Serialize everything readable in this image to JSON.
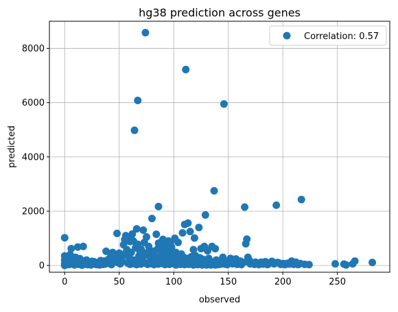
{
  "chart_data": {
    "type": "scatter",
    "title": "hg38 prediction across genes",
    "xlabel": "observed",
    "ylabel": "predicted",
    "xlim": [
      -14,
      298
    ],
    "ylim": [
      -250,
      9000
    ],
    "xticks": [
      0,
      50,
      100,
      150,
      200,
      250
    ],
    "yticks": [
      0,
      2000,
      4000,
      6000,
      8000
    ],
    "grid": true,
    "legend": {
      "placement": "top-right",
      "entries": [
        "Correlation: 0.57"
      ]
    },
    "series": [
      {
        "name": "Correlation: 0.57",
        "color": "#1f77b4",
        "points": [
          [
            74,
            8580
          ],
          [
            111,
            7220
          ],
          [
            67,
            6080
          ],
          [
            146,
            5950
          ],
          [
            64,
            4980
          ],
          [
            137,
            2750
          ],
          [
            86,
            2170
          ],
          [
            194,
            2220
          ],
          [
            217,
            2430
          ],
          [
            165,
            2150
          ],
          [
            80,
            1730
          ],
          [
            129,
            1860
          ],
          [
            110,
            1510
          ],
          [
            113,
            1560
          ],
          [
            123,
            1400
          ],
          [
            115,
            1250
          ],
          [
            108,
            1200
          ],
          [
            72,
            1300
          ],
          [
            66,
            1350
          ],
          [
            48,
            1180
          ],
          [
            56,
            1100
          ],
          [
            84,
            1150
          ],
          [
            101,
            1000
          ],
          [
            119,
            1010
          ],
          [
            0,
            1020
          ],
          [
            62,
            1160
          ],
          [
            75,
            1050
          ],
          [
            95,
            900
          ],
          [
            104,
            850
          ],
          [
            135,
            700
          ],
          [
            138,
            620
          ],
          [
            167,
            970
          ],
          [
            166,
            800
          ],
          [
            60,
            880
          ],
          [
            54,
            760
          ],
          [
            88,
            740
          ],
          [
            98,
            680
          ],
          [
            6,
            620
          ],
          [
            12,
            680
          ],
          [
            17,
            700
          ],
          [
            38,
            520
          ],
          [
            44,
            480
          ],
          [
            70,
            600
          ],
          [
            78,
            560
          ],
          [
            92,
            620
          ],
          [
            3,
            250
          ],
          [
            5,
            400
          ],
          [
            10,
            300
          ],
          [
            15,
            120
          ],
          [
            20,
            200
          ],
          [
            22,
            80
          ],
          [
            25,
            150
          ],
          [
            28,
            60
          ],
          [
            30,
            90
          ],
          [
            33,
            180
          ],
          [
            35,
            40
          ],
          [
            40,
            220
          ],
          [
            42,
            300
          ],
          [
            45,
            140
          ],
          [
            47,
            380
          ],
          [
            50,
            450
          ],
          [
            52,
            260
          ],
          [
            55,
            420
          ],
          [
            57,
            580
          ],
          [
            59,
            300
          ],
          [
            61,
            480
          ],
          [
            63,
            200
          ],
          [
            65,
            650
          ],
          [
            68,
            340
          ],
          [
            69,
            520
          ],
          [
            71,
            280
          ],
          [
            73,
            460
          ],
          [
            76,
            380
          ],
          [
            77,
            700
          ],
          [
            79,
            260
          ],
          [
            81,
            520
          ],
          [
            82,
            380
          ],
          [
            83,
            180
          ],
          [
            85,
            600
          ],
          [
            87,
            330
          ],
          [
            89,
            480
          ],
          [
            90,
            240
          ],
          [
            91,
            560
          ],
          [
            93,
            420
          ],
          [
            94,
            300
          ],
          [
            96,
            510
          ],
          [
            97,
            200
          ],
          [
            99,
            380
          ],
          [
            100,
            260
          ],
          [
            102,
            480
          ],
          [
            103,
            180
          ],
          [
            105,
            340
          ],
          [
            106,
            220
          ],
          [
            107,
            420
          ],
          [
            109,
            300
          ],
          [
            112,
            260
          ],
          [
            114,
            180
          ],
          [
            116,
            320
          ],
          [
            117,
            140
          ],
          [
            118,
            240
          ],
          [
            120,
            360
          ],
          [
            121,
            120
          ],
          [
            122,
            200
          ],
          [
            124,
            280
          ],
          [
            125,
            160
          ],
          [
            126,
            100
          ],
          [
            127,
            220
          ],
          [
            128,
            80
          ],
          [
            130,
            180
          ],
          [
            131,
            120
          ],
          [
            132,
            260
          ],
          [
            133,
            60
          ],
          [
            134,
            140
          ],
          [
            136,
            100
          ],
          [
            139,
            200
          ],
          [
            140,
            80
          ],
          [
            141,
            150
          ],
          [
            142,
            40
          ],
          [
            143,
            120
          ],
          [
            144,
            60
          ],
          [
            145,
            100
          ],
          [
            147,
            50
          ],
          [
            148,
            140
          ],
          [
            149,
            30
          ],
          [
            150,
            80
          ],
          [
            152,
            260
          ],
          [
            154,
            60
          ],
          [
            156,
            120
          ],
          [
            158,
            40
          ],
          [
            160,
            90
          ],
          [
            162,
            30
          ],
          [
            164,
            110
          ],
          [
            168,
            300
          ],
          [
            170,
            60
          ],
          [
            172,
            100
          ],
          [
            174,
            40
          ],
          [
            176,
            80
          ],
          [
            178,
            30
          ],
          [
            180,
            120
          ],
          [
            182,
            50
          ],
          [
            184,
            140
          ],
          [
            186,
            30
          ],
          [
            188,
            90
          ],
          [
            190,
            150
          ],
          [
            192,
            60
          ],
          [
            196,
            100
          ],
          [
            198,
            40
          ],
          [
            200,
            70
          ],
          [
            202,
            30
          ],
          [
            204,
            80
          ],
          [
            206,
            50
          ],
          [
            208,
            160
          ],
          [
            210,
            40
          ],
          [
            212,
            120
          ],
          [
            214,
            30
          ],
          [
            216,
            70
          ],
          [
            220,
            40
          ],
          [
            224,
            30
          ],
          [
            248,
            60
          ],
          [
            256,
            50
          ],
          [
            258,
            20
          ],
          [
            264,
            60
          ],
          [
            266,
            160
          ],
          [
            282,
            110
          ],
          [
            0,
            0
          ],
          [
            0,
            80
          ],
          [
            0,
            200
          ],
          [
            0,
            350
          ],
          [
            1,
            40
          ],
          [
            1,
            150
          ],
          [
            2,
            100
          ],
          [
            4,
            30
          ],
          [
            7,
            60
          ],
          [
            8,
            180
          ],
          [
            9,
            20
          ],
          [
            11,
            90
          ],
          [
            13,
            40
          ],
          [
            14,
            250
          ],
          [
            16,
            10
          ],
          [
            18,
            130
          ],
          [
            19,
            60
          ],
          [
            21,
            30
          ],
          [
            23,
            100
          ],
          [
            24,
            20
          ],
          [
            26,
            70
          ],
          [
            27,
            140
          ],
          [
            29,
            30
          ],
          [
            31,
            60
          ],
          [
            32,
            20
          ],
          [
            34,
            90
          ],
          [
            36,
            160
          ],
          [
            37,
            50
          ],
          [
            39,
            110
          ],
          [
            41,
            70
          ],
          [
            43,
            30
          ],
          [
            46,
            200
          ],
          [
            49,
            100
          ],
          [
            51,
            60
          ],
          [
            53,
            150
          ],
          [
            58,
            80
          ],
          [
            60,
            40
          ],
          [
            62,
            120
          ],
          [
            64,
            60
          ],
          [
            66,
            30
          ],
          [
            68,
            100
          ],
          [
            70,
            50
          ],
          [
            72,
            150
          ],
          [
            74,
            90
          ],
          [
            76,
            40
          ],
          [
            78,
            120
          ],
          [
            80,
            60
          ],
          [
            82,
            30
          ],
          [
            84,
            90
          ],
          [
            86,
            50
          ],
          [
            88,
            110
          ],
          [
            90,
            70
          ],
          [
            92,
            30
          ],
          [
            94,
            80
          ],
          [
            96,
            40
          ],
          [
            98,
            100
          ],
          [
            100,
            60
          ],
          [
            102,
            20
          ],
          [
            104,
            70
          ],
          [
            106,
            40
          ],
          [
            108,
            90
          ],
          [
            110,
            30
          ],
          [
            112,
            80
          ],
          [
            114,
            40
          ],
          [
            116,
            60
          ],
          [
            118,
            20
          ],
          [
            120,
            50
          ],
          [
            122,
            30
          ],
          [
            124,
            60
          ],
          [
            126,
            20
          ],
          [
            128,
            40
          ],
          [
            130,
            20
          ],
          [
            132,
            50
          ],
          [
            134,
            20
          ],
          [
            136,
            40
          ],
          [
            138,
            20
          ],
          [
            140,
            30
          ],
          [
            55,
            950
          ],
          [
            58,
            1050
          ],
          [
            63,
            900
          ],
          [
            93,
            780
          ],
          [
            97,
            850
          ],
          [
            86,
            820
          ],
          [
            90,
            960
          ],
          [
            67,
            780
          ],
          [
            73,
            850
          ],
          [
            118,
            580
          ],
          [
            125,
            620
          ],
          [
            131,
            540
          ],
          [
            128,
            700
          ],
          [
            145,
            300
          ],
          [
            153,
            180
          ],
          [
            157,
            240
          ],
          [
            161,
            160
          ],
          [
            169,
            200
          ],
          [
            175,
            120
          ],
          [
            183,
            90
          ],
          [
            187,
            70
          ],
          [
            195,
            110
          ],
          [
            201,
            60
          ]
        ]
      }
    ]
  }
}
